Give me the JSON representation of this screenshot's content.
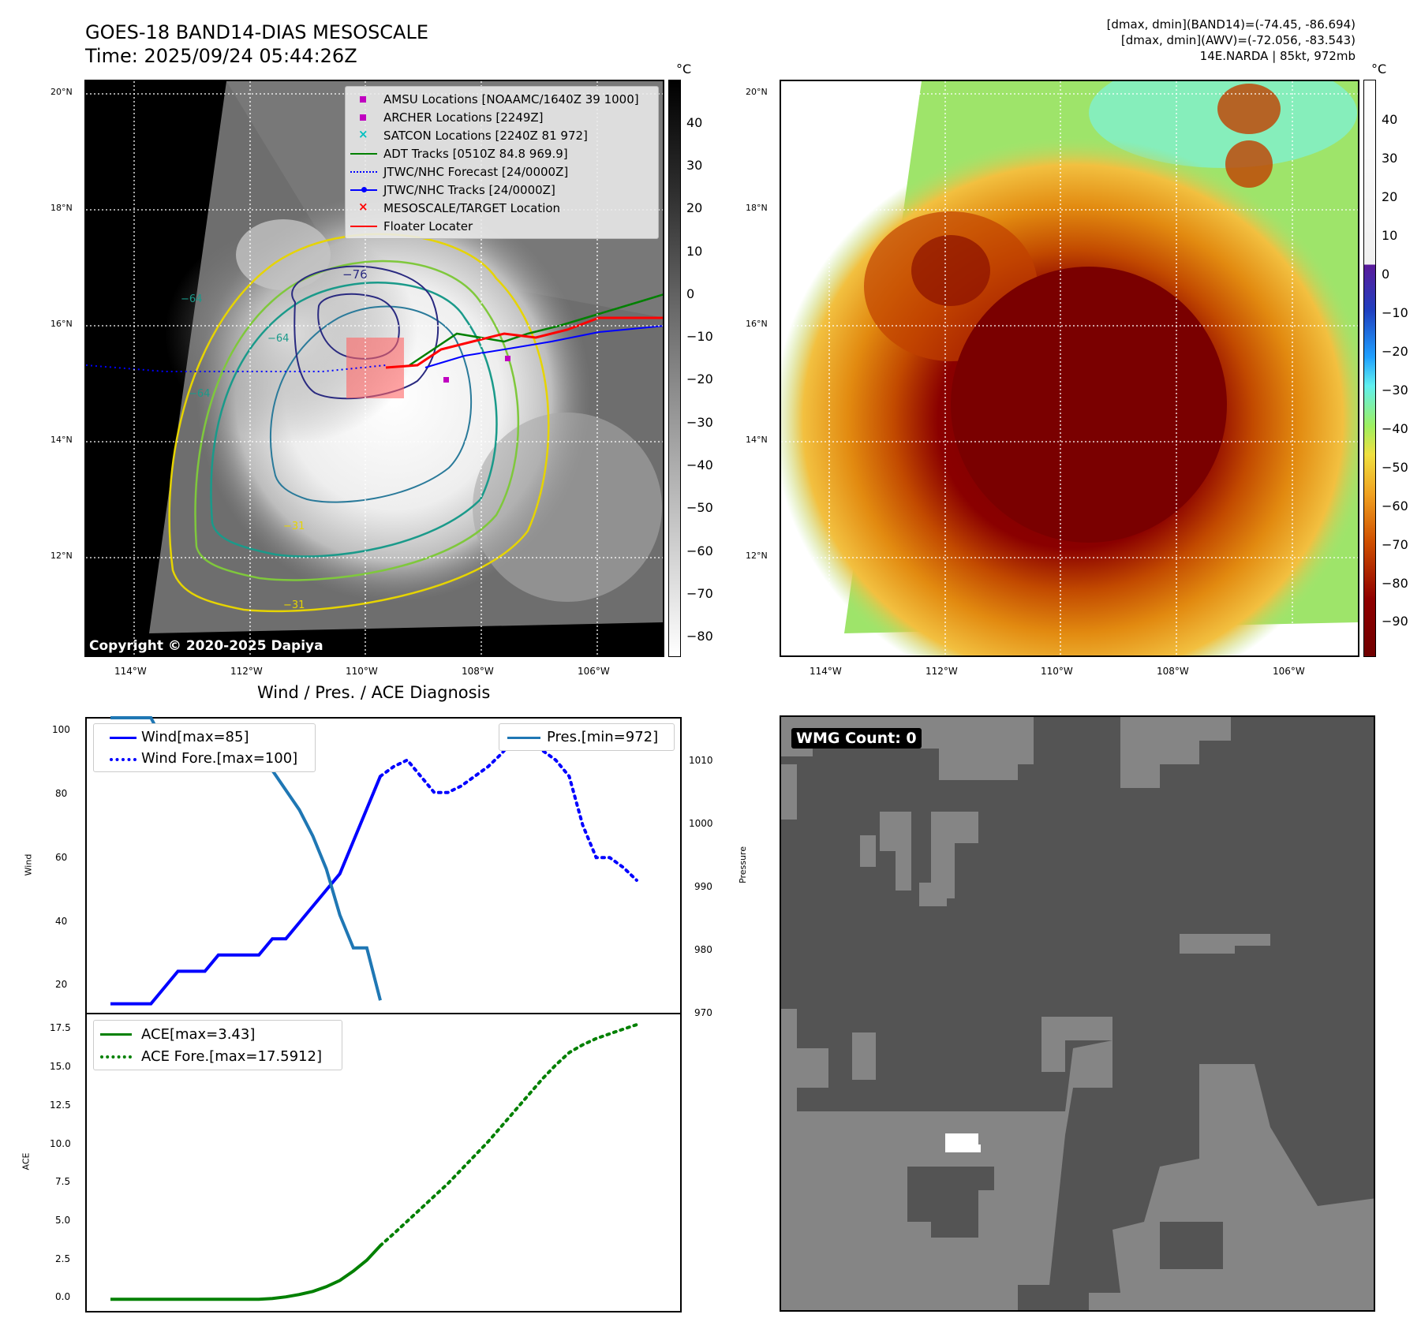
{
  "header": {
    "title_line1": "GOES-18 BAND14-DIAS MESOSCALE",
    "title_line2": "Time: 2025/09/24 05:44:26Z",
    "info_line1": "[dmax, dmin](BAND14)=(-74.45, -86.694)",
    "info_line2": "[dmax, dmin](AWV)=(-72.056, -83.543)",
    "info_line3": "14E.NARDA | 85kt, 972mb"
  },
  "ir_panel": {
    "unit": "°C",
    "colorbar_ticks": [
      "40",
      "30",
      "20",
      "10",
      "0",
      "−10",
      "−20",
      "−30",
      "−40",
      "−50",
      "−60",
      "−70",
      "−80"
    ],
    "lat_labels": [
      "20°N",
      "18°N",
      "16°N",
      "14°N",
      "12°N"
    ],
    "lon_labels": [
      "114°W",
      "112°W",
      "110°W",
      "108°W",
      "106°W"
    ],
    "copyright": "Copyright © 2020-2025 Dapiya",
    "contour_labels": [
      "−76",
      "−64",
      "−64",
      "−64",
      "−31",
      "−31"
    ],
    "legend": [
      {
        "label": "AMSU Locations [NOAAMC/1640Z 39 1000]",
        "color": "#c000c0",
        "kind": "square"
      },
      {
        "label": "ARCHER Locations [2249Z]",
        "color": "#c000c0",
        "kind": "square"
      },
      {
        "label": "SATCON Locations [2240Z 81 972]",
        "color": "#00bfbf",
        "kind": "x"
      },
      {
        "label": "ADT Tracks [0510Z 84.8 969.9]",
        "color": "#008000",
        "kind": "line"
      },
      {
        "label": "JTWC/NHC Forecast [24/0000Z]",
        "color": "#0000ff",
        "kind": "dotted"
      },
      {
        "label": "JTWC/NHC Tracks [24/0000Z]",
        "color": "#0000ff",
        "kind": "linedot"
      },
      {
        "label": "MESOSCALE/TARGET Location",
        "color": "#ff0000",
        "kind": "x"
      },
      {
        "label": "Floater Locater",
        "color": "#ff0000",
        "kind": "line"
      }
    ]
  },
  "awv_panel": {
    "unit": "°C",
    "colorbar_ticks": [
      "40",
      "30",
      "20",
      "10",
      "0",
      "−10",
      "−20",
      "−30",
      "−40",
      "−50",
      "−60",
      "−70",
      "−80",
      "−90"
    ],
    "lat_labels": [
      "20°N",
      "18°N",
      "16°N",
      "14°N",
      "12°N"
    ],
    "lon_labels": [
      "114°W",
      "112°W",
      "110°W",
      "108°W",
      "106°W"
    ]
  },
  "diagnosis": {
    "title": "Wind / Pres. / ACE Diagnosis",
    "wind_ylabel": "Wind",
    "pres_ylabel": "Pressure",
    "ace_ylabel": "ACE",
    "wind_ticks": [
      "100",
      "80",
      "60",
      "40",
      "20"
    ],
    "pres_ticks": [
      "1010",
      "1000",
      "990",
      "980",
      "970"
    ],
    "ace_ticks": [
      "17.5",
      "15.0",
      "12.5",
      "10.0",
      "7.5",
      "5.0",
      "2.5",
      "0.0"
    ],
    "legend_wind": "Wind[max=85]",
    "legend_wind_fore": "Wind Fore.[max=100]",
    "legend_pres": "Pres.[min=972]",
    "legend_ace": "ACE[max=3.43]",
    "legend_ace_fore": "ACE Fore.[max=17.5912]"
  },
  "chart_data": [
    {
      "type": "line",
      "title": "Wind / Pres. / ACE Diagnosis",
      "ylabel": "Wind",
      "ylim": [
        12,
        103
      ],
      "x": [
        0,
        1,
        2,
        3,
        4,
        5,
        6,
        7,
        8,
        9,
        10,
        11,
        12,
        13,
        14,
        15,
        16,
        17,
        18,
        19,
        20,
        21,
        22,
        23,
        24,
        25,
        26,
        27,
        28,
        29,
        30,
        31,
        32,
        33,
        34,
        35,
        36,
        37,
        38,
        39
      ],
      "series": [
        {
          "name": "Wind[max=85]",
          "color": "#0000ff",
          "style": "solid",
          "x": [
            0,
            1,
            2,
            3,
            4,
            5,
            6,
            7,
            8,
            9,
            10,
            11,
            12,
            13,
            14,
            15,
            16,
            17,
            18,
            19,
            20
          ],
          "values": [
            15,
            15,
            15,
            15,
            20,
            25,
            25,
            25,
            30,
            30,
            30,
            30,
            35,
            35,
            40,
            45,
            50,
            55,
            65,
            75,
            85
          ]
        },
        {
          "name": "Wind Fore.[max=100]",
          "color": "#0000ff",
          "style": "dotted",
          "x": [
            20,
            21,
            22,
            23,
            24,
            25,
            26,
            27,
            28,
            29,
            30,
            31,
            32,
            33,
            34,
            35,
            36,
            37,
            38,
            39
          ],
          "values": [
            85,
            88,
            90,
            85,
            80,
            80,
            82,
            85,
            88,
            92,
            97,
            100,
            93,
            90,
            85,
            70,
            60,
            60,
            57,
            53
          ]
        }
      ]
    },
    {
      "type": "line",
      "ylabel": "Pressure",
      "ylim": [
        970,
        1015
      ],
      "x": [
        0,
        1,
        2,
        3,
        4,
        5,
        6,
        7,
        8,
        9,
        10,
        11,
        12,
        13,
        14,
        15,
        16,
        17,
        18,
        19,
        20
      ],
      "series": [
        {
          "name": "Pres.[min=972]",
          "color": "#1f77b4",
          "style": "solid",
          "values": [
            1015,
            1015,
            1015,
            1015,
            1011,
            1009,
            1009,
            1009,
            1009,
            1009,
            1009,
            1007,
            1007,
            1004,
            1001,
            997,
            992,
            985,
            980,
            980,
            972
          ]
        }
      ]
    },
    {
      "type": "line",
      "ylabel": "ACE",
      "ylim": [
        -0.8,
        18.3
      ],
      "x": [
        0,
        1,
        2,
        3,
        4,
        5,
        6,
        7,
        8,
        9,
        10,
        11,
        12,
        13,
        14,
        15,
        16,
        17,
        18,
        19,
        20,
        21,
        22,
        23,
        24,
        25,
        26,
        27,
        28,
        29,
        30,
        31,
        32,
        33,
        34,
        35,
        36,
        37,
        38,
        39
      ],
      "series": [
        {
          "name": "ACE[max=3.43]",
          "color": "#008000",
          "style": "solid",
          "x": [
            0,
            1,
            2,
            3,
            4,
            5,
            6,
            7,
            8,
            9,
            10,
            11,
            12,
            13,
            14,
            15,
            16,
            17,
            18,
            19,
            20
          ],
          "values": [
            0,
            0,
            0,
            0,
            0,
            0,
            0,
            0,
            0,
            0,
            0,
            0,
            0.05,
            0.15,
            0.3,
            0.5,
            0.8,
            1.2,
            1.8,
            2.5,
            3.43
          ]
        },
        {
          "name": "ACE Fore.[max=17.5912]",
          "color": "#008000",
          "style": "dotted",
          "x": [
            20,
            21,
            22,
            23,
            24,
            25,
            26,
            27,
            28,
            29,
            30,
            31,
            32,
            33,
            34,
            35,
            36,
            37,
            38,
            39
          ],
          "values": [
            3.43,
            4.2,
            5.0,
            5.8,
            6.6,
            7.4,
            8.3,
            9.2,
            10.1,
            11.1,
            12.1,
            13.1,
            14.1,
            15.0,
            15.8,
            16.3,
            16.7,
            17.0,
            17.3,
            17.59
          ]
        }
      ]
    }
  ],
  "wmg_panel": {
    "label": "WMG Count: 0"
  }
}
